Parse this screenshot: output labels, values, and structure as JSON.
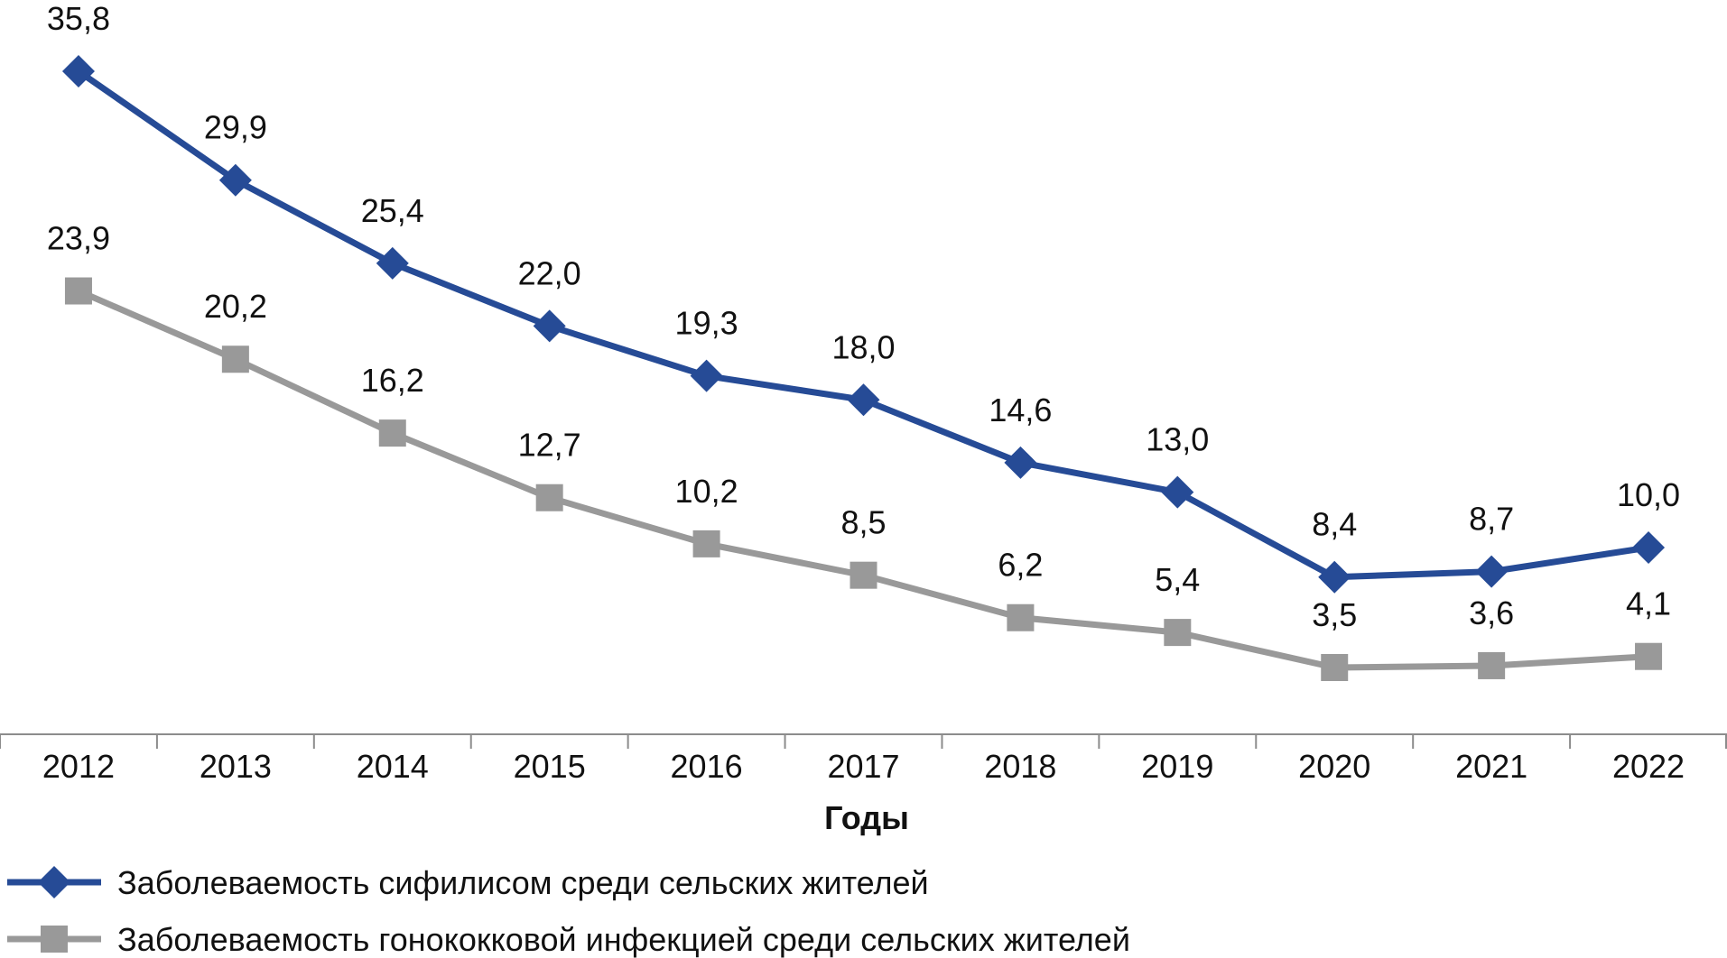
{
  "chart_data": {
    "type": "line",
    "title": "",
    "xlabel": "Годы",
    "ylabel": "",
    "categories": [
      "2012",
      "2013",
      "2014",
      "2015",
      "2016",
      "2017",
      "2018",
      "2019",
      "2020",
      "2021",
      "2022"
    ],
    "ylim": [
      0,
      36
    ],
    "grid": false,
    "legend_position": "bottom-left",
    "series": [
      {
        "name": "Заболеваемость сифилисом среди сельских жителей",
        "marker": "diamond",
        "color": "#264b96",
        "values": [
          35.8,
          29.9,
          25.4,
          22.0,
          19.3,
          18.0,
          14.6,
          13.0,
          8.4,
          8.7,
          10.0
        ],
        "labels": [
          "35,8",
          "29,9",
          "25,4",
          "22,0",
          "19,3",
          "18,0",
          "14,6",
          "13,0",
          "8,4",
          "8,7",
          "10,0"
        ]
      },
      {
        "name": "Заболеваемость гонококковой инфекцией среди сельских жителей",
        "marker": "square",
        "color": "#999999",
        "values": [
          23.9,
          20.2,
          16.2,
          12.7,
          10.2,
          8.5,
          6.2,
          5.4,
          3.5,
          3.6,
          4.1
        ],
        "labels": [
          "23,9",
          "20,2",
          "16,2",
          "12,7",
          "10,2",
          "8,5",
          "6,2",
          "5,4",
          "3,5",
          "3,6",
          "4,1"
        ]
      }
    ]
  }
}
